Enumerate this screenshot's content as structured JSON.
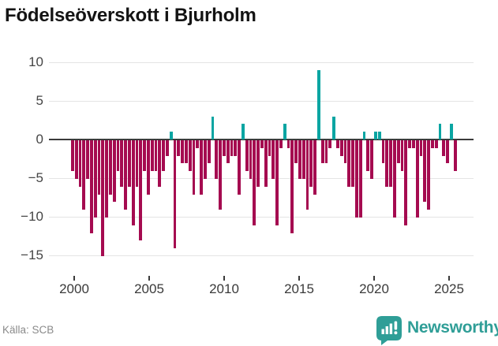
{
  "title": "Födelseöverskott i Bjurholm",
  "source_label": "Källa: SCB",
  "logo": {
    "text": "Newsworthy",
    "icon": "newsworthy-chart-bubble-icon"
  },
  "colors": {
    "positive": "#0aa5a2",
    "negative": "#a50b50",
    "zero_line": "#3b3b3b",
    "gridline": "#e4e4e4",
    "logo_teal": "#2f9e97"
  },
  "y_axis": {
    "labels": [
      "10",
      "5",
      "0",
      "−5",
      "−10",
      "−15"
    ],
    "values": [
      10,
      5,
      0,
      -5,
      -10,
      -15
    ]
  },
  "x_axis": {
    "tick_labels": [
      "2000",
      "2005",
      "2010",
      "2015",
      "2020",
      "2025"
    ]
  },
  "chart_data": {
    "type": "bar",
    "title": "Födelseöverskott i Bjurholm",
    "xlabel": "",
    "ylabel": "",
    "ylim": [
      -16,
      11
    ],
    "grid": true,
    "x_ticks": [
      2000,
      2005,
      2010,
      2015,
      2020,
      2025
    ],
    "frequency": "quarterly",
    "categories": [
      "2000K1",
      "2000K2",
      "2000K3",
      "2000K4",
      "2001K1",
      "2001K2",
      "2001K3",
      "2001K4",
      "2002K1",
      "2002K2",
      "2002K3",
      "2002K4",
      "2003K1",
      "2003K2",
      "2003K3",
      "2003K4",
      "2004K1",
      "2004K2",
      "2004K3",
      "2004K4",
      "2005K1",
      "2005K2",
      "2005K3",
      "2005K4",
      "2006K1",
      "2006K2",
      "2006K3",
      "2006K4",
      "2007K1",
      "2007K2",
      "2007K3",
      "2007K4",
      "2008K1",
      "2008K2",
      "2008K3",
      "2008K4",
      "2009K1",
      "2009K2",
      "2009K3",
      "2009K4",
      "2010K1",
      "2010K2",
      "2010K3",
      "2010K4",
      "2011K1",
      "2011K2",
      "2011K3",
      "2011K4",
      "2012K1",
      "2012K2",
      "2012K3",
      "2012K4",
      "2013K1",
      "2013K2",
      "2013K3",
      "2013K4",
      "2014K1",
      "2014K2",
      "2014K3",
      "2014K4",
      "2015K1",
      "2015K2",
      "2015K3",
      "2015K4",
      "2016K1",
      "2016K2",
      "2016K3",
      "2016K4",
      "2017K1",
      "2017K2",
      "2017K3",
      "2017K4",
      "2018K1",
      "2018K2",
      "2018K3",
      "2018K4",
      "2019K1",
      "2019K2",
      "2019K3",
      "2019K4",
      "2020K1",
      "2020K2",
      "2020K3",
      "2020K4",
      "2021K1",
      "2021K2",
      "2021K3",
      "2021K4",
      "2022K1",
      "2022K2",
      "2022K3",
      "2022K4",
      "2023K1",
      "2023K2",
      "2023K3",
      "2023K4",
      "2024K1",
      "2024K2",
      "2024K3",
      "2024K4",
      "2025K1",
      "2025K2"
    ],
    "values": [
      -4,
      -5,
      -6,
      -9,
      -5,
      -12,
      -10,
      -7,
      -15,
      -10,
      -7,
      -8,
      -4,
      -6,
      -9,
      -6,
      -11,
      -6,
      -13,
      -4,
      -7,
      -4,
      -4,
      -6,
      -4,
      -2,
      1,
      -14,
      -2,
      -3,
      -3,
      -4,
      -7,
      -1,
      -7,
      -5,
      -3,
      3,
      -5,
      -9,
      -2,
      -3,
      -2,
      -2,
      -7,
      2,
      -4,
      -5,
      -11,
      -6,
      -1,
      -6,
      -2,
      -5,
      -11,
      -1,
      2,
      -1,
      -12,
      -3,
      -5,
      -5,
      -9,
      -6,
      -7,
      9,
      -3,
      -3,
      -1,
      3,
      -1,
      -2,
      -3,
      -6,
      -6,
      -10,
      -10,
      1,
      -4,
      -5,
      1,
      1,
      -3,
      -6,
      -6,
      -10,
      -3,
      -4,
      -11,
      -1,
      -1,
      -10,
      -2,
      -8,
      -9,
      -1,
      -1,
      2,
      -2,
      -3,
      2,
      -4
    ]
  }
}
